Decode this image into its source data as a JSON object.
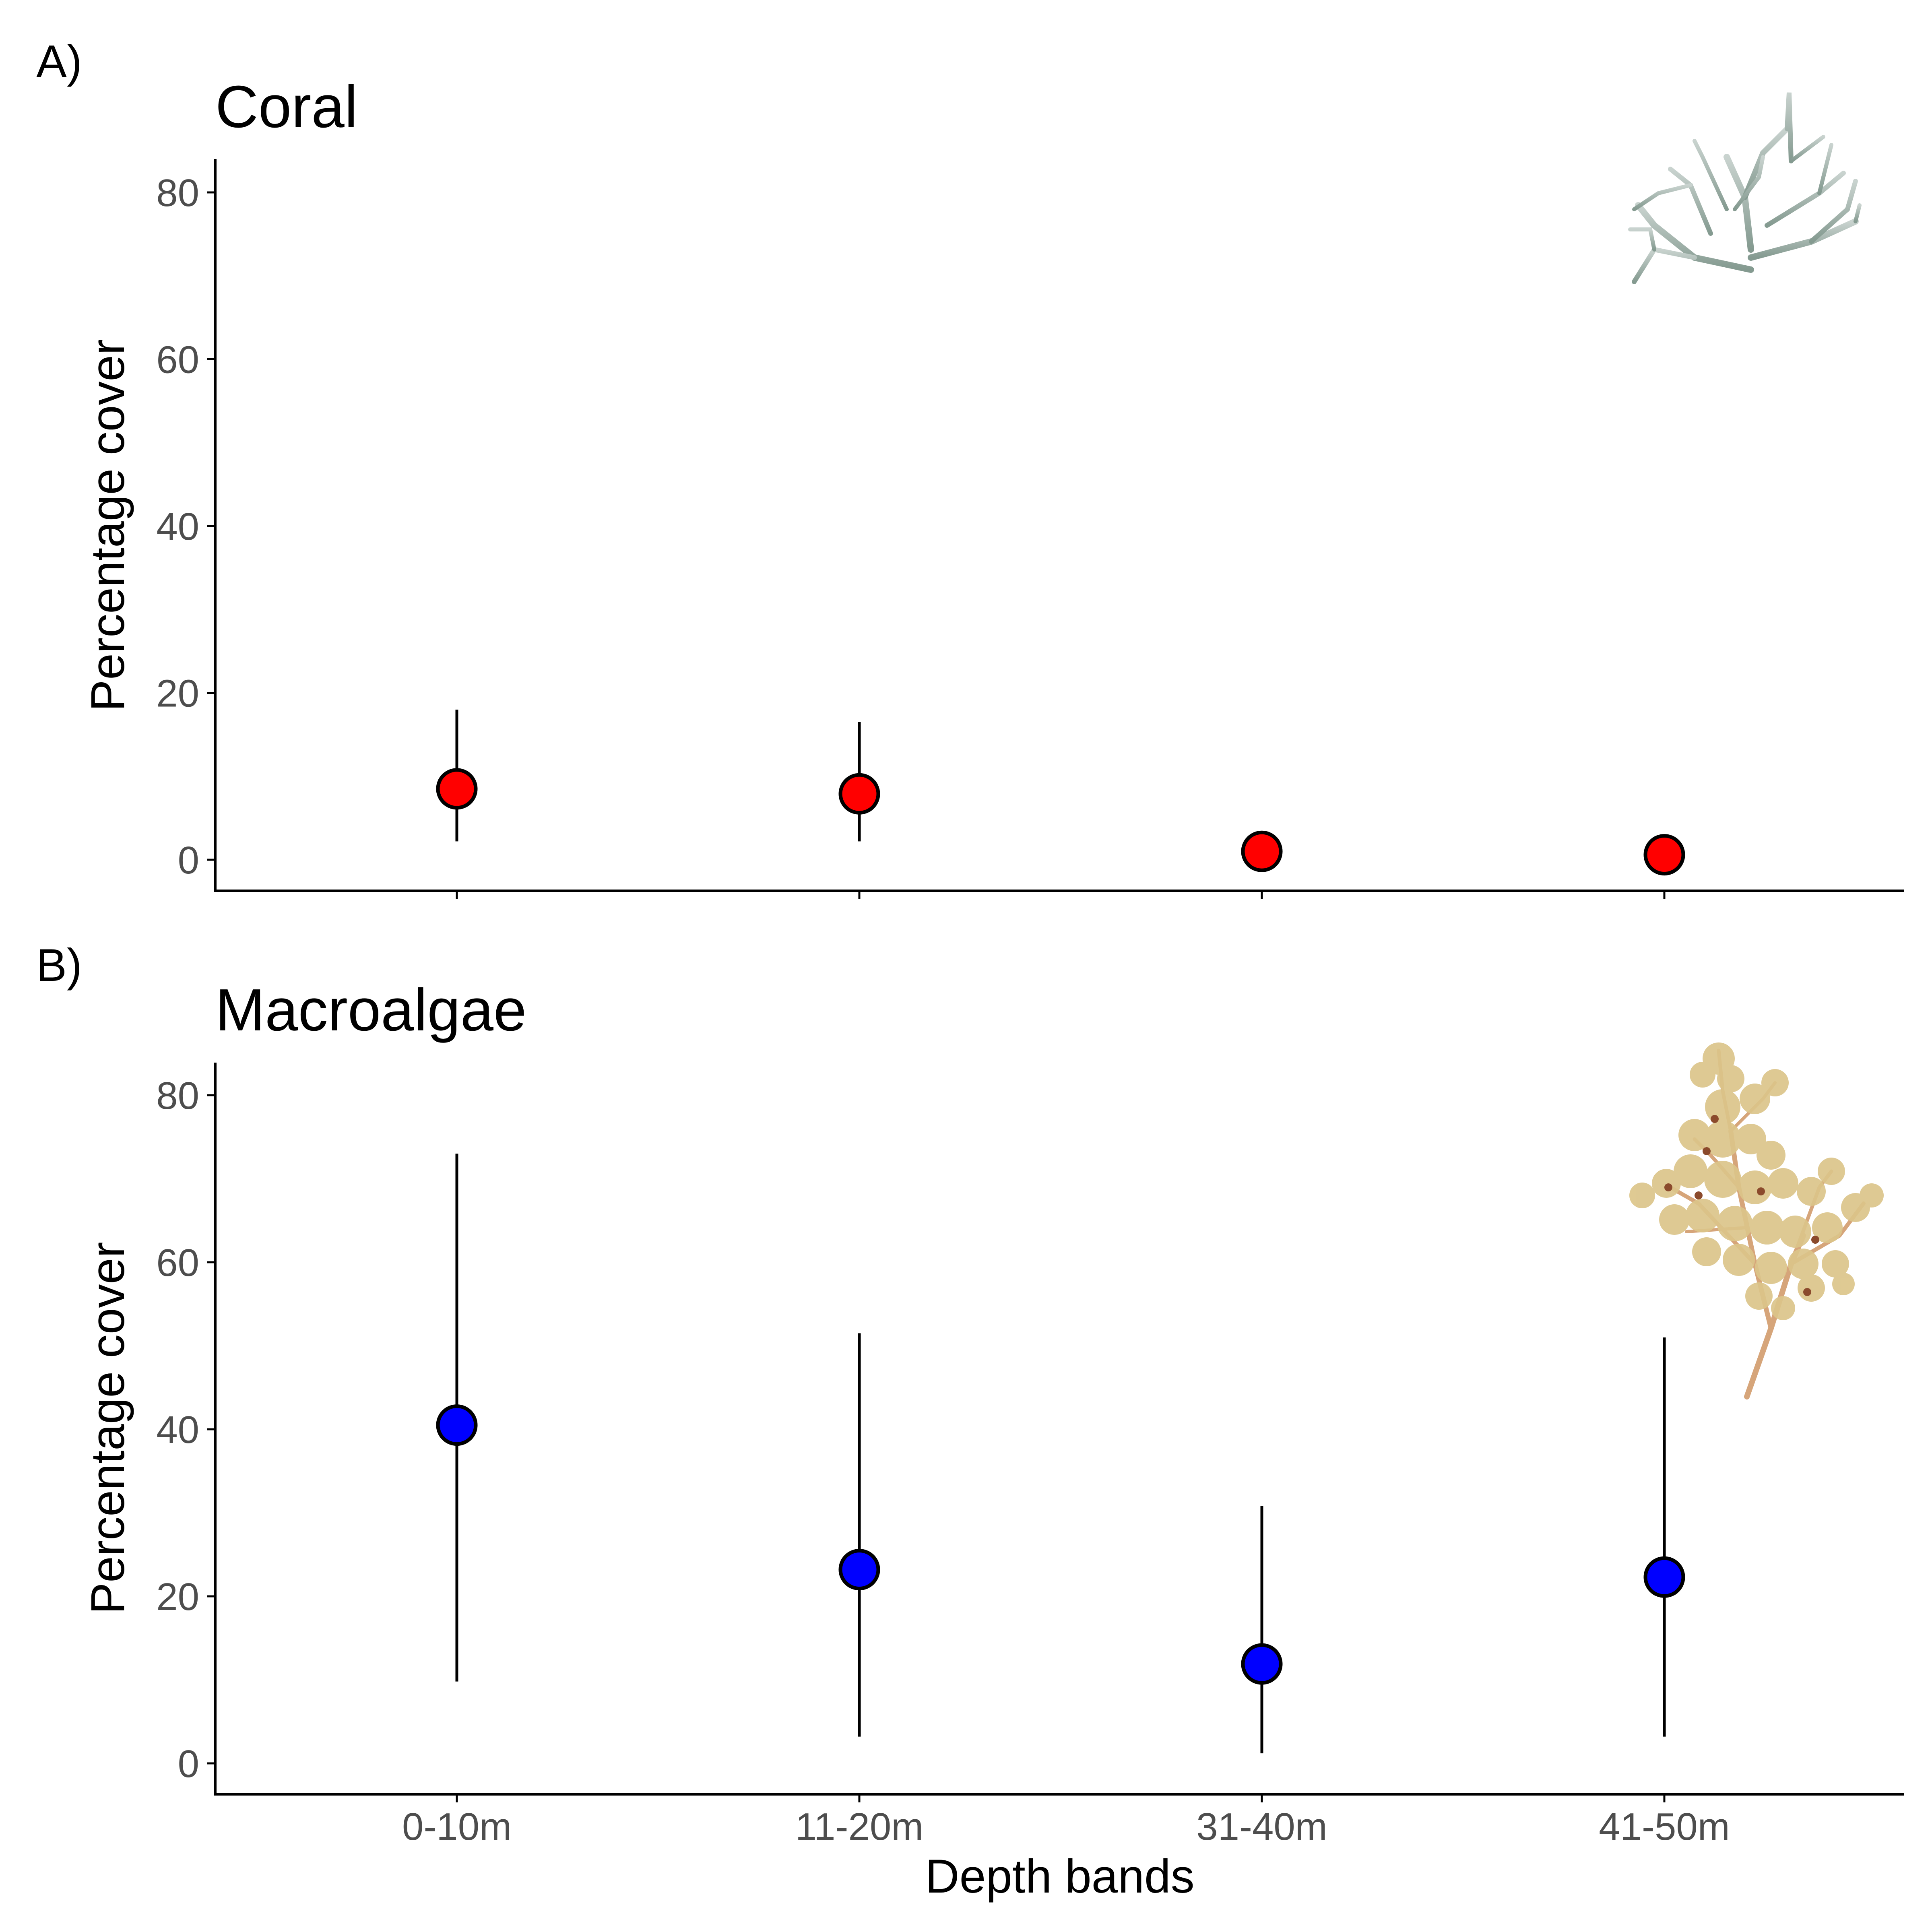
{
  "figure": {
    "xlabel": "Depth bands",
    "categories": [
      "0-10m",
      "11-20m",
      "31-40m",
      "41-50m"
    ]
  },
  "chart_data": [
    {
      "type": "scatter",
      "panel_label": "A)",
      "title": "Coral",
      "xlabel": "",
      "ylabel": "Percentage cover",
      "categories": [
        "0-10m",
        "11-20m",
        "31-40m",
        "41-50m"
      ],
      "values": [
        8.5,
        7.9,
        1.0,
        0.6
      ],
      "error_low": [
        2.2,
        2.2,
        0.5,
        0.3
      ],
      "error_high": [
        18.0,
        16.5,
        1.5,
        0.9
      ],
      "y_ticks": [
        0,
        20,
        40,
        60,
        80
      ],
      "ylim": [
        -4,
        84
      ],
      "point_color": "#ff0000",
      "grid": false,
      "legend": "none",
      "icon": "coral-illustration-icon",
      "icon_color": "#8a9e96"
    },
    {
      "type": "scatter",
      "panel_label": "B)",
      "title": "Macroalgae",
      "xlabel": "Depth bands",
      "ylabel": "Percentage cover",
      "categories": [
        "0-10m",
        "11-20m",
        "31-40m",
        "41-50m"
      ],
      "values": [
        40.5,
        23.2,
        11.9,
        22.3
      ],
      "error_low": [
        9.8,
        3.2,
        1.2,
        3.2
      ],
      "error_high": [
        73.0,
        51.5,
        30.8,
        51.0
      ],
      "y_ticks": [
        0,
        20,
        40,
        60,
        80
      ],
      "ylim": [
        -4,
        84
      ],
      "point_color": "#0000ff",
      "grid": false,
      "legend": "none",
      "icon": "macroalgae-illustration-icon",
      "icon_color": "#d4b77c"
    }
  ]
}
